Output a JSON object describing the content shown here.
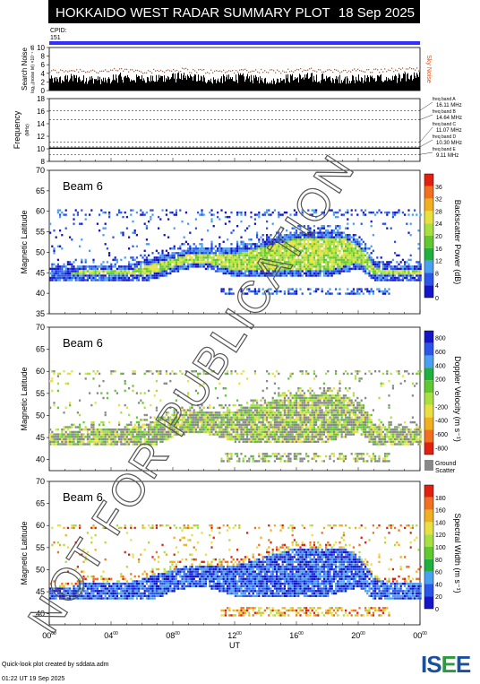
{
  "header": {
    "title": "HOKKAIDO WEST RADAR SUMMARY PLOT",
    "date": "18 Sep 2025",
    "cpid_label": "CPID:",
    "cpid_value": "151"
  },
  "colors": {
    "header_bg": "#000000",
    "cpid_bar": "#3030ff",
    "noise_search": "#000000",
    "noise_sky": "#e05010",
    "ground_scatter": "#888888",
    "watermark": "#555555"
  },
  "chart_data": [
    {
      "type": "area",
      "panel": "noise",
      "ylabel": "Search Noise",
      "ylabel_sub": "log₁₀(noise lvl) ×10⁻¹ dB",
      "side_label": "Sky Noise",
      "yticks": [
        0,
        2,
        4,
        6,
        8,
        10
      ],
      "ylim": [
        0,
        10
      ],
      "series": [
        {
          "name": "Search Noise",
          "values": [
            2.5,
            2.8,
            2.6,
            2.4,
            3.0,
            2.7,
            2.6,
            2.9,
            3.0,
            2.8,
            2.5,
            2.7,
            2.9,
            2.6,
            2.4,
            2.8,
            3.0,
            2.9,
            2.7,
            2.6,
            2.8,
            2.7,
            2.9,
            3.1
          ]
        },
        {
          "name": "Sky Noise",
          "values": [
            4.6,
            4.8,
            4.7,
            4.5,
            4.9,
            4.8,
            4.6,
            4.8,
            4.9,
            4.7,
            4.5,
            4.6,
            4.8,
            4.7,
            4.6,
            4.8,
            4.9,
            4.7,
            4.6,
            4.8,
            4.7,
            4.8,
            4.9,
            5.0
          ]
        }
      ]
    },
    {
      "type": "line",
      "panel": "frequency",
      "ylabel": "Frequency",
      "ylabel_sub": "(MHz)",
      "yticks": [
        8,
        10,
        12,
        14,
        16,
        18
      ],
      "ylim": [
        8,
        18
      ],
      "x": [
        0,
        24
      ],
      "values": [
        10.1,
        10.1
      ],
      "bands": [
        {
          "label": "freq band A",
          "value": "16.11 MHz",
          "freq": 16.11
        },
        {
          "label": "freq band B",
          "value": "14.64 MHz",
          "freq": 14.64
        },
        {
          "label": "freq band C",
          "value": "11.07 MHz",
          "freq": 11.07
        },
        {
          "label": "freq band D",
          "value": "10.30 MHz",
          "freq": 10.3
        },
        {
          "label": "freq band E",
          "value": "9.11 MHz",
          "freq": 9.11
        }
      ]
    },
    {
      "type": "heatmap",
      "panel": "power",
      "beam": "Beam  6",
      "ylabel": "Magnetic Latitude",
      "yticks": [
        35,
        40,
        45,
        50,
        55,
        60,
        65,
        70
      ],
      "ylim": [
        35,
        70
      ],
      "colorbar_label": "Backscatter Power (dB)",
      "colorbar_ticks": [
        "0",
        "4",
        "8",
        "12",
        "16",
        "20",
        "24",
        "28",
        "32",
        "36"
      ],
      "colorbar_range": [
        0,
        36
      ]
    },
    {
      "type": "heatmap",
      "panel": "velocity",
      "beam": "Beam  6",
      "ylabel": "Magnetic Latitude",
      "yticks": [
        40,
        45,
        50,
        55,
        60,
        65,
        70
      ],
      "ylim": [
        37.5,
        70
      ],
      "colorbar_label": "Doppler Velocity (m s⁻¹)",
      "colorbar_ticks": [
        "800",
        "600",
        "400",
        "200",
        "0",
        "-200",
        "-400",
        "-600",
        "-800"
      ],
      "colorbar_range": [
        -800,
        800
      ],
      "ground_scatter_label_1": "Ground",
      "ground_scatter_label_2": "Scatter"
    },
    {
      "type": "heatmap",
      "panel": "width",
      "beam": "Beam  6",
      "ylabel": "Magnetic Latitude",
      "yticks": [
        40,
        45,
        50,
        55,
        60,
        65,
        70
      ],
      "ylim": [
        37.5,
        70
      ],
      "colorbar_label": "Spectral Width (m s⁻¹)",
      "colorbar_ticks": [
        "0",
        "20",
        "40",
        "60",
        "80",
        "100",
        "120",
        "140",
        "160",
        "180"
      ],
      "colorbar_range": [
        0,
        180
      ]
    }
  ],
  "xaxis": {
    "label": "UT",
    "ticks": [
      "00",
      "04",
      "08",
      "12",
      "16",
      "20",
      "00"
    ],
    "tick_sup": "00",
    "xlim": [
      0,
      24
    ]
  },
  "echo_band": {
    "hours": [
      0,
      1,
      2,
      3,
      4,
      5,
      6,
      7,
      8,
      9,
      10,
      11,
      12,
      13,
      14,
      15,
      16,
      17,
      18,
      19,
      20,
      21,
      22,
      23,
      24
    ],
    "lat_low": [
      43,
      43,
      43,
      43,
      43,
      43,
      43,
      43.5,
      45,
      46,
      46,
      45,
      44,
      44,
      44,
      44,
      44,
      44,
      44,
      45,
      46,
      43,
      43,
      43,
      43
    ],
    "lat_high": [
      46,
      46,
      47,
      47,
      47,
      47,
      48,
      49,
      50,
      51,
      51,
      51,
      51,
      52,
      53,
      54,
      55,
      55,
      55,
      55,
      53,
      48,
      47,
      47,
      47
    ]
  },
  "watermark": "NOT FOR PUBLICATION",
  "footer": {
    "credit": "Quick-look plot created by sddata.adm",
    "timestamp": "01:22 UT 19 Sep 2025",
    "logo": "ISEE"
  }
}
